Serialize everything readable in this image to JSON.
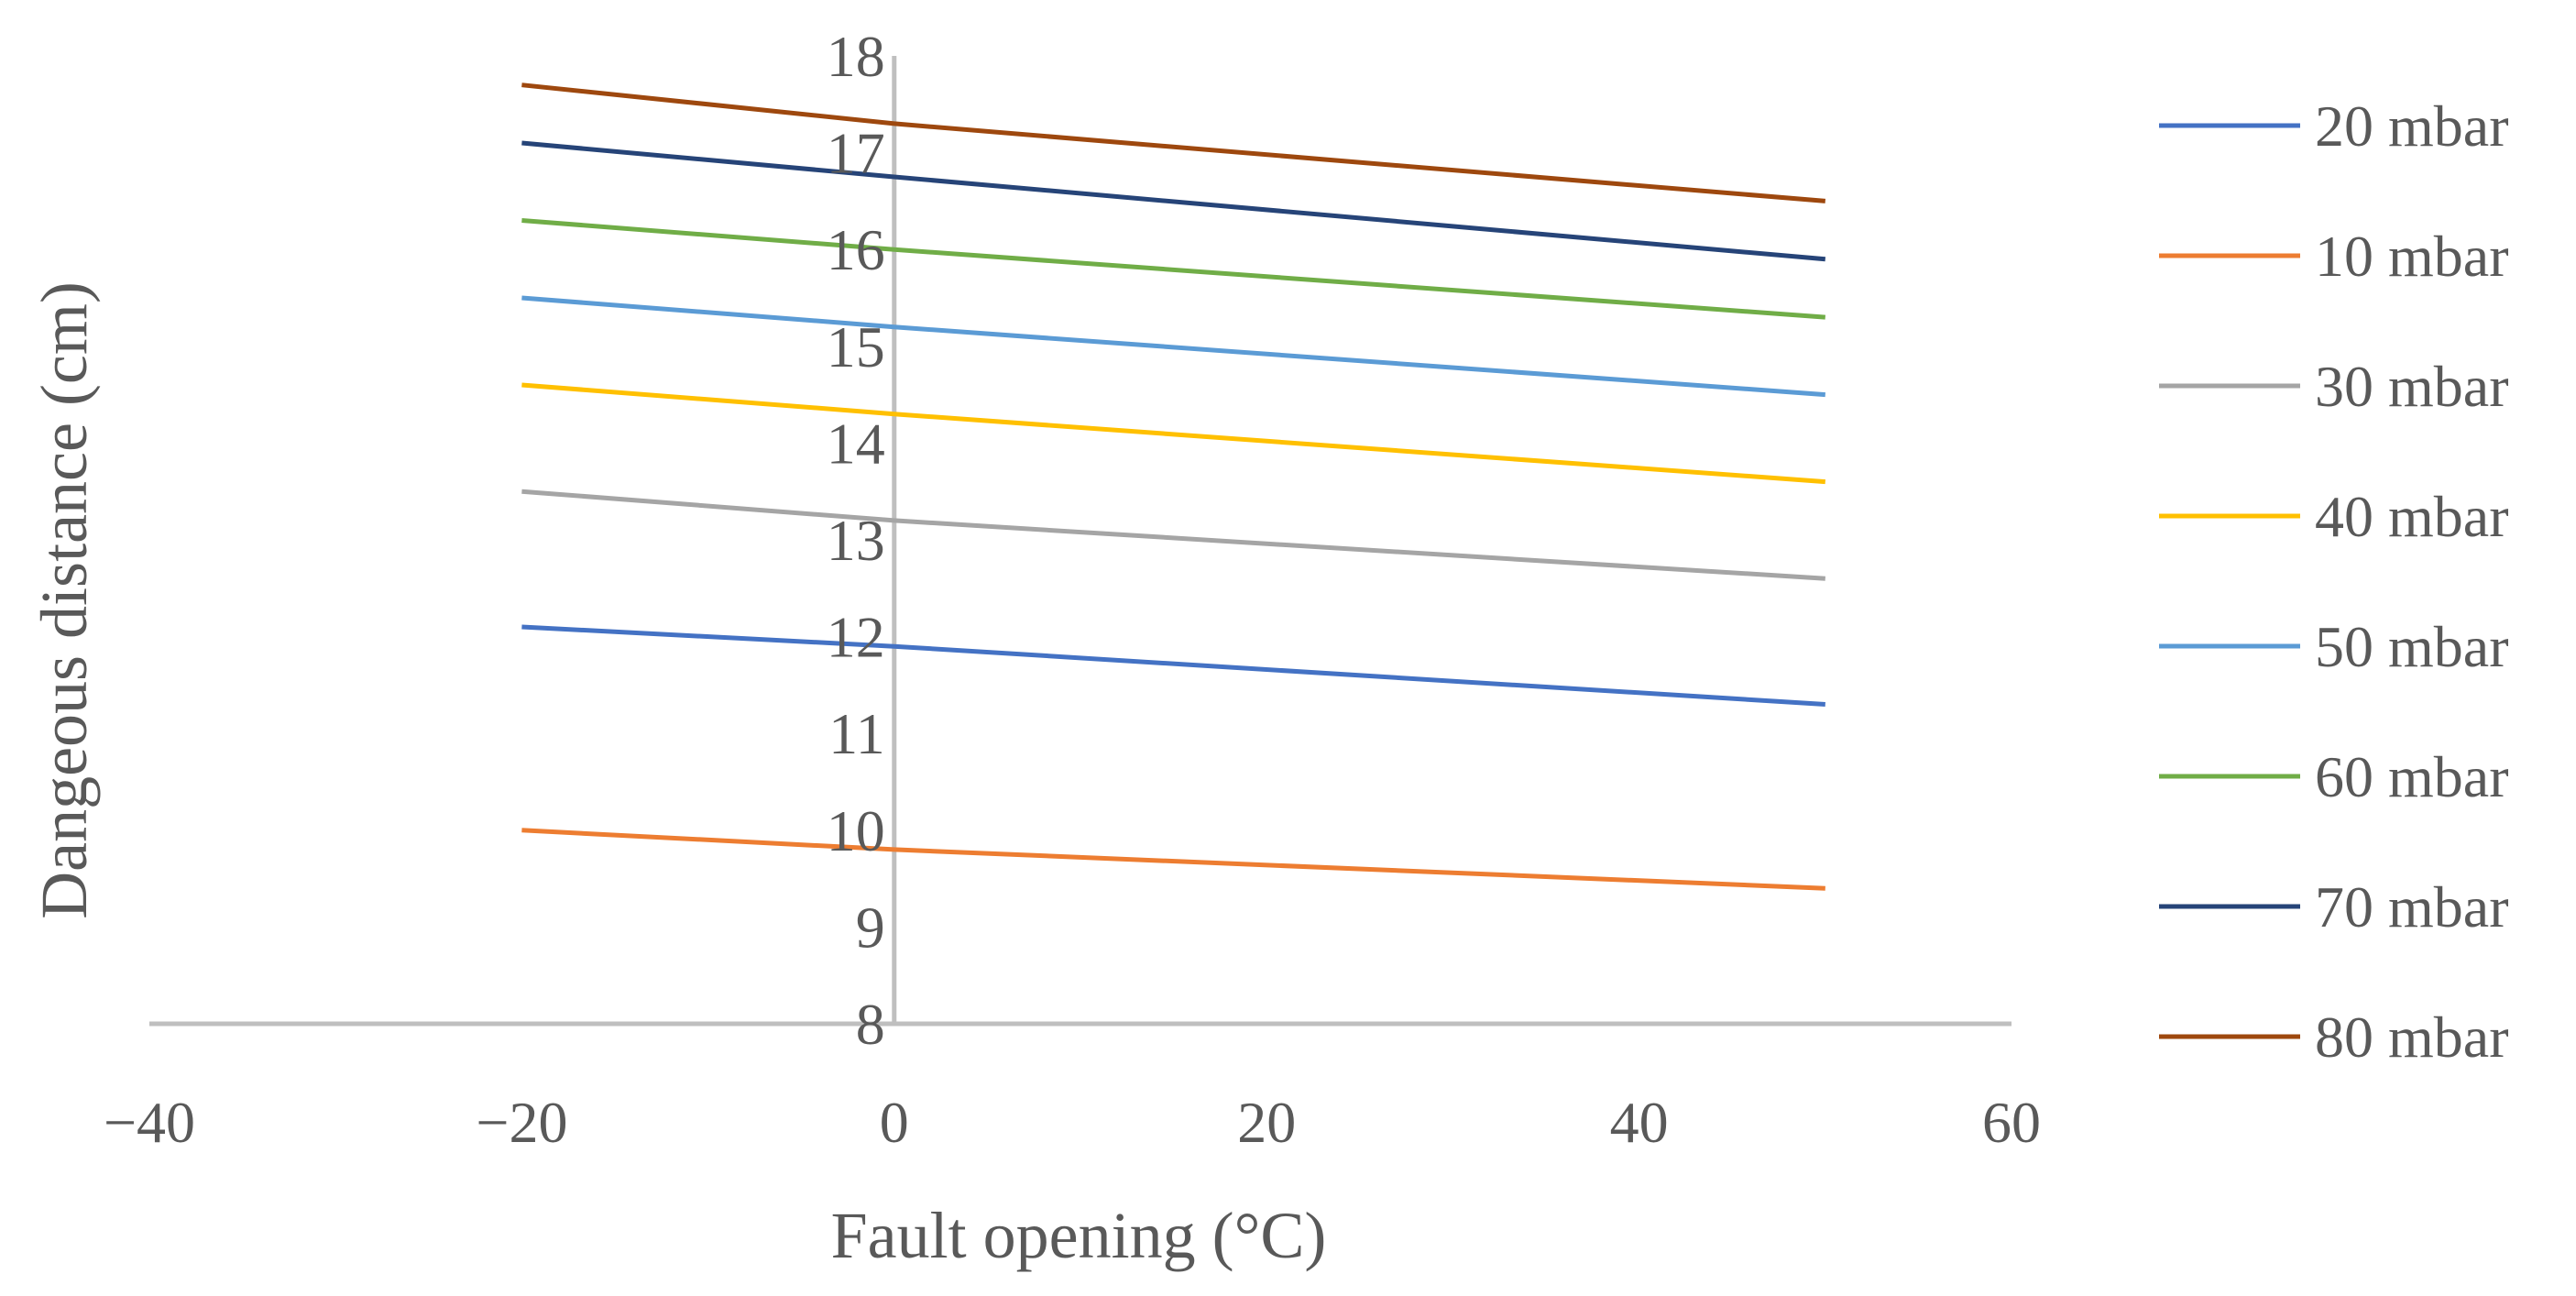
{
  "chart_data": {
    "type": "line",
    "title": "",
    "xlabel": "Fault opening (°C)",
    "ylabel": "Dangeous distance (cm)",
    "xlim": [
      -40,
      60
    ],
    "ylim": [
      8,
      18
    ],
    "xticks": [
      -40,
      -20,
      0,
      20,
      40,
      60
    ],
    "yticks": [
      8,
      9,
      10,
      11,
      12,
      13,
      14,
      15,
      16,
      17,
      18
    ],
    "xtick_labels": [
      "−40",
      "−20",
      "0",
      "20",
      "40",
      "60"
    ],
    "ytick_labels": [
      "8",
      "9",
      "10",
      "11",
      "12",
      "13",
      "14",
      "15",
      "16",
      "17",
      "18"
    ],
    "grid": false,
    "legend_position": "right",
    "x": [
      -20,
      0,
      50
    ],
    "series": [
      {
        "name": "20 mbar",
        "color": "#4472C4",
        "values": [
          12.1,
          11.9,
          11.3
        ]
      },
      {
        "name": "10 mbar",
        "color": "#ED7D31",
        "values": [
          10.0,
          9.8,
          9.4
        ]
      },
      {
        "name": "30 mbar",
        "color": "#A5A5A5",
        "values": [
          13.5,
          13.2,
          12.6
        ]
      },
      {
        "name": "40 mbar",
        "color": "#FFC000",
        "values": [
          14.6,
          14.3,
          13.6
        ]
      },
      {
        "name": "50 mbar",
        "color": "#5B9BD5",
        "values": [
          15.5,
          15.2,
          14.5
        ]
      },
      {
        "name": "60 mbar",
        "color": "#70AD47",
        "values": [
          16.3,
          16.0,
          15.3
        ]
      },
      {
        "name": "70 mbar",
        "color": "#264478",
        "values": [
          17.1,
          16.75,
          15.9
        ]
      },
      {
        "name": "80 mbar",
        "color": "#9E480E",
        "values": [
          17.7,
          17.3,
          16.5
        ]
      }
    ]
  }
}
